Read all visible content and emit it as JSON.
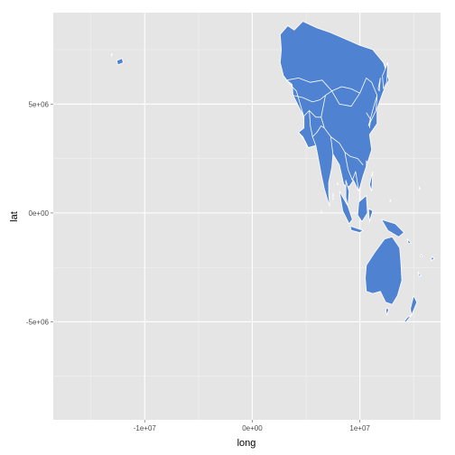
{
  "chart_data": {
    "type": "map",
    "xlabel": "long",
    "ylabel": "lat",
    "xlim": [
      -18500000,
      17500000
    ],
    "ylim": [
      -9500000,
      9200000
    ],
    "x_ticks": [
      {
        "value": -10000000,
        "label": "-1e+07"
      },
      {
        "value": 0,
        "label": "0e+00"
      },
      {
        "value": 10000000,
        "label": "1e+07"
      }
    ],
    "y_ticks": [
      {
        "value": -5000000,
        "label": "-5e+06"
      },
      {
        "value": 0,
        "label": "0e+00"
      },
      {
        "value": 5000000,
        "label": "5e+06"
      }
    ],
    "x_minor": [
      -15000000,
      -5000000,
      5000000,
      15000000
    ],
    "y_minor": [
      -7500000,
      -2500000,
      2500000,
      7500000
    ],
    "grid": true,
    "colors": {
      "panel": "#e5e5e5",
      "grid_major": "#ffffff",
      "grid_minor": "#f2f2f2",
      "fill": "#5082d2",
      "border": "#ffffff"
    },
    "regions": [
      {
        "name": "asia-mainland",
        "points": [
          [
            2600000,
            8200000
          ],
          [
            3300000,
            8600000
          ],
          [
            3900000,
            8400000
          ],
          [
            4700000,
            8800000
          ],
          [
            6000000,
            8500000
          ],
          [
            7200000,
            8300000
          ],
          [
            8600000,
            8000000
          ],
          [
            10000000,
            7700000
          ],
          [
            11200000,
            7500000
          ],
          [
            12200000,
            6900000
          ],
          [
            12700000,
            6100000
          ],
          [
            12200000,
            5600000
          ],
          [
            11600000,
            4800000
          ],
          [
            11600000,
            4100000
          ],
          [
            10900000,
            3600000
          ],
          [
            11100000,
            2900000
          ],
          [
            10700000,
            2300000
          ],
          [
            10300000,
            1700000
          ],
          [
            9900000,
            1000000
          ],
          [
            9400000,
            1500000
          ],
          [
            9000000,
            1200000
          ],
          [
            8500000,
            1300000
          ],
          [
            8100000,
            2200000
          ],
          [
            7500000,
            2700000
          ],
          [
            7400000,
            2100000
          ],
          [
            7100000,
            1400000
          ],
          [
            7100000,
            900000
          ],
          [
            7200000,
            300000
          ],
          [
            7000000,
            600000
          ],
          [
            6700000,
            1100000
          ],
          [
            6400000,
            1800000
          ],
          [
            6100000,
            2600000
          ],
          [
            5900000,
            3100000
          ],
          [
            5200000,
            3000000
          ],
          [
            4700000,
            3500000
          ],
          [
            4300000,
            3700000
          ],
          [
            4800000,
            3900000
          ],
          [
            4800000,
            4400000
          ],
          [
            4400000,
            4800000
          ],
          [
            3800000,
            5400000
          ],
          [
            3700000,
            5900000
          ],
          [
            3200000,
            6100000
          ],
          [
            2900000,
            6300000
          ],
          [
            2600000,
            6900000
          ],
          [
            2700000,
            7500000
          ]
        ]
      },
      {
        "name": "kamchatka",
        "points": [
          [
            12100000,
            6300000
          ],
          [
            12600000,
            6900000
          ],
          [
            12500000,
            6000000
          ],
          [
            12200000,
            5700000
          ]
        ]
      },
      {
        "name": "japan",
        "points": [
          [
            11300000,
            4900000
          ],
          [
            11600000,
            5400000
          ],
          [
            11500000,
            4700000
          ],
          [
            11100000,
            4300000
          ],
          [
            10800000,
            4000000
          ]
        ]
      },
      {
        "name": "malay-peninsula",
        "points": [
          [
            8700000,
            1500000
          ],
          [
            9000000,
            1000000
          ],
          [
            8900000,
            300000
          ],
          [
            8700000,
            700000
          ]
        ]
      },
      {
        "name": "sumatra",
        "points": [
          [
            8100000,
            1000000
          ],
          [
            8900000,
            300000
          ],
          [
            9300000,
            -300000
          ],
          [
            9000000,
            -500000
          ],
          [
            8400000,
            100000
          ]
        ]
      },
      {
        "name": "borneo",
        "points": [
          [
            9900000,
            500000
          ],
          [
            10600000,
            800000
          ],
          [
            10700000,
            0
          ],
          [
            10200000,
            -400000
          ],
          [
            9800000,
            -100000
          ]
        ]
      },
      {
        "name": "java",
        "points": [
          [
            9100000,
            -600000
          ],
          [
            10300000,
            -800000
          ],
          [
            10000000,
            -900000
          ],
          [
            9200000,
            -800000
          ]
        ]
      },
      {
        "name": "sulawesi",
        "points": [
          [
            10800000,
            200000
          ],
          [
            11200000,
            100000
          ],
          [
            10900000,
            -400000
          ]
        ]
      },
      {
        "name": "philippines",
        "points": [
          [
            10900000,
            1300000
          ],
          [
            11200000,
            1900000
          ],
          [
            11100000,
            1000000
          ]
        ]
      },
      {
        "name": "new-guinea",
        "points": [
          [
            12000000,
            -300000
          ],
          [
            13300000,
            -500000
          ],
          [
            14100000,
            -900000
          ],
          [
            13600000,
            -1100000
          ],
          [
            12600000,
            -800000
          ]
        ]
      },
      {
        "name": "australia",
        "points": [
          [
            10600000,
            -2400000
          ],
          [
            11400000,
            -1800000
          ],
          [
            12300000,
            -1200000
          ],
          [
            13000000,
            -1100000
          ],
          [
            13700000,
            -1600000
          ],
          [
            13800000,
            -2200000
          ],
          [
            13900000,
            -3100000
          ],
          [
            13500000,
            -3800000
          ],
          [
            13000000,
            -4200000
          ],
          [
            12400000,
            -4100000
          ],
          [
            11900000,
            -3600000
          ],
          [
            11200000,
            -3700000
          ],
          [
            10600000,
            -3600000
          ],
          [
            10500000,
            -3000000
          ]
        ]
      },
      {
        "name": "tasmania",
        "points": [
          [
            12400000,
            -4400000
          ],
          [
            12700000,
            -4400000
          ],
          [
            12500000,
            -4700000
          ]
        ]
      },
      {
        "name": "new-zealand-north",
        "points": [
          [
            15000000,
            -3800000
          ],
          [
            15300000,
            -4100000
          ],
          [
            14800000,
            -4700000
          ],
          [
            14700000,
            -4400000
          ]
        ]
      },
      {
        "name": "new-zealand-south",
        "points": [
          [
            14400000,
            -4800000
          ],
          [
            14800000,
            -4700000
          ],
          [
            14300000,
            -5000000
          ],
          [
            14100000,
            -5000000
          ]
        ]
      },
      {
        "name": "sri-lanka",
        "points": [
          [
            7500000,
            900000
          ],
          [
            7600000,
            700000
          ],
          [
            7500000,
            600000
          ]
        ]
      },
      {
        "name": "taiwan",
        "points": [
          [
            10600000,
            2400000
          ],
          [
            10700000,
            2300000
          ],
          [
            10600000,
            2100000
          ]
        ]
      },
      {
        "name": "hawaii",
        "points": [
          [
            -12600000,
            7000000
          ],
          [
            -12100000,
            7100000
          ],
          [
            -12000000,
            6900000
          ],
          [
            -12500000,
            6800000
          ]
        ]
      },
      {
        "name": "solomon-islands",
        "points": [
          [
            14400000,
            -1200000
          ],
          [
            14800000,
            -1400000
          ],
          [
            14500000,
            -1400000
          ]
        ]
      },
      {
        "name": "vanuatu",
        "points": [
          [
            15700000,
            -1900000
          ],
          [
            15800000,
            -2000000
          ],
          [
            15600000,
            -2000000
          ]
        ]
      },
      {
        "name": "fiji",
        "points": [
          [
            16700000,
            -2000000
          ],
          [
            16900000,
            -2100000
          ],
          [
            16600000,
            -2200000
          ]
        ]
      },
      {
        "name": "new-caledonia",
        "points": [
          [
            15400000,
            -2700000
          ],
          [
            15700000,
            -2900000
          ],
          [
            15500000,
            -2900000
          ]
        ]
      },
      {
        "name": "marshall-islet",
        "points": [
          [
            15500000,
            1200000
          ],
          [
            15600000,
            1100000
          ],
          [
            15500000,
            1100000
          ]
        ]
      },
      {
        "name": "maldives",
        "points": [
          [
            6400000,
            100000
          ],
          [
            6500000,
            0
          ],
          [
            6400000,
            0
          ]
        ]
      },
      {
        "name": "andaman",
        "points": [
          [
            7900000,
            1400000
          ],
          [
            8000000,
            1300000
          ],
          [
            7900000,
            1300000
          ]
        ]
      },
      {
        "name": "sakhalin",
        "points": [
          [
            11700000,
            5700000
          ],
          [
            11900000,
            6200000
          ],
          [
            11800000,
            5600000
          ]
        ]
      },
      {
        "name": "small-pacific-islet",
        "points": [
          [
            -13100000,
            7300000
          ],
          [
            -13000000,
            7300000
          ],
          [
            -13100000,
            7200000
          ]
        ]
      },
      {
        "name": "micronesia-islet",
        "points": [
          [
            12800000,
            600000
          ],
          [
            12900000,
            600000
          ],
          [
            12800000,
            500000
          ]
        ]
      }
    ],
    "borders": [
      {
        "name": "russia-south-border",
        "points": [
          [
            3200000,
            6100000
          ],
          [
            4300000,
            6200000
          ],
          [
            5400000,
            6000000
          ],
          [
            6500000,
            6100000
          ],
          [
            7400000,
            5600000
          ],
          [
            8300000,
            5800000
          ],
          [
            9200000,
            5700000
          ],
          [
            10000000,
            5500000
          ],
          [
            10600000,
            6200000
          ],
          [
            11100000,
            6000000
          ],
          [
            11600000,
            5400000
          ]
        ]
      },
      {
        "name": "kazakhstan-south-border",
        "points": [
          [
            3800000,
            5400000
          ],
          [
            4700000,
            5300000
          ],
          [
            5600000,
            5100000
          ],
          [
            6300000,
            5200000
          ],
          [
            6800000,
            5400000
          ],
          [
            7400000,
            5600000
          ]
        ]
      },
      {
        "name": "mongolia-south-border",
        "points": [
          [
            7400000,
            5600000
          ],
          [
            8100000,
            5000000
          ],
          [
            9200000,
            4900000
          ],
          [
            10000000,
            5500000
          ]
        ]
      },
      {
        "name": "china-west-south-border",
        "points": [
          [
            6800000,
            5400000
          ],
          [
            6400000,
            4400000
          ],
          [
            6700000,
            3900000
          ],
          [
            7300000,
            3500000
          ],
          [
            8100000,
            3200000
          ],
          [
            8600000,
            2800000
          ],
          [
            9100000,
            2600000
          ],
          [
            9800000,
            2500000
          ],
          [
            10300000,
            2200000
          ]
        ]
      },
      {
        "name": "stans-border",
        "points": [
          [
            4700000,
            4400000
          ],
          [
            5300000,
            4700000
          ],
          [
            5900000,
            4400000
          ],
          [
            6400000,
            4400000
          ]
        ]
      },
      {
        "name": "iran-afghan-border",
        "points": [
          [
            5300000,
            4700000
          ],
          [
            5400000,
            4000000
          ],
          [
            5600000,
            3500000
          ],
          [
            5900000,
            3100000
          ]
        ]
      },
      {
        "name": "pakistan-border",
        "points": [
          [
            5600000,
            3500000
          ],
          [
            6000000,
            3700000
          ],
          [
            6400000,
            4000000
          ],
          [
            6700000,
            3900000
          ]
        ]
      },
      {
        "name": "india-east-border",
        "points": [
          [
            7300000,
            3500000
          ],
          [
            7500000,
            2700000
          ],
          [
            8100000,
            2200000
          ]
        ]
      },
      {
        "name": "indochina-border",
        "points": [
          [
            8600000,
            2800000
          ],
          [
            8900000,
            2000000
          ],
          [
            9300000,
            1500000
          ],
          [
            9600000,
            1900000
          ],
          [
            9900000,
            1000000
          ]
        ]
      },
      {
        "name": "korea-border",
        "points": [
          [
            10600000,
            4600000
          ],
          [
            11000000,
            4300000
          ],
          [
            10900000,
            3900000
          ]
        ]
      },
      {
        "name": "middle-east-border",
        "points": [
          [
            4300000,
            3700000
          ],
          [
            4900000,
            3300000
          ],
          [
            5200000,
            3000000
          ]
        ]
      },
      {
        "name": "turkey-border",
        "points": [
          [
            2900000,
            6300000
          ],
          [
            3500000,
            5900000
          ],
          [
            4100000,
            5600000
          ],
          [
            4800000,
            4400000
          ]
        ]
      }
    ]
  }
}
